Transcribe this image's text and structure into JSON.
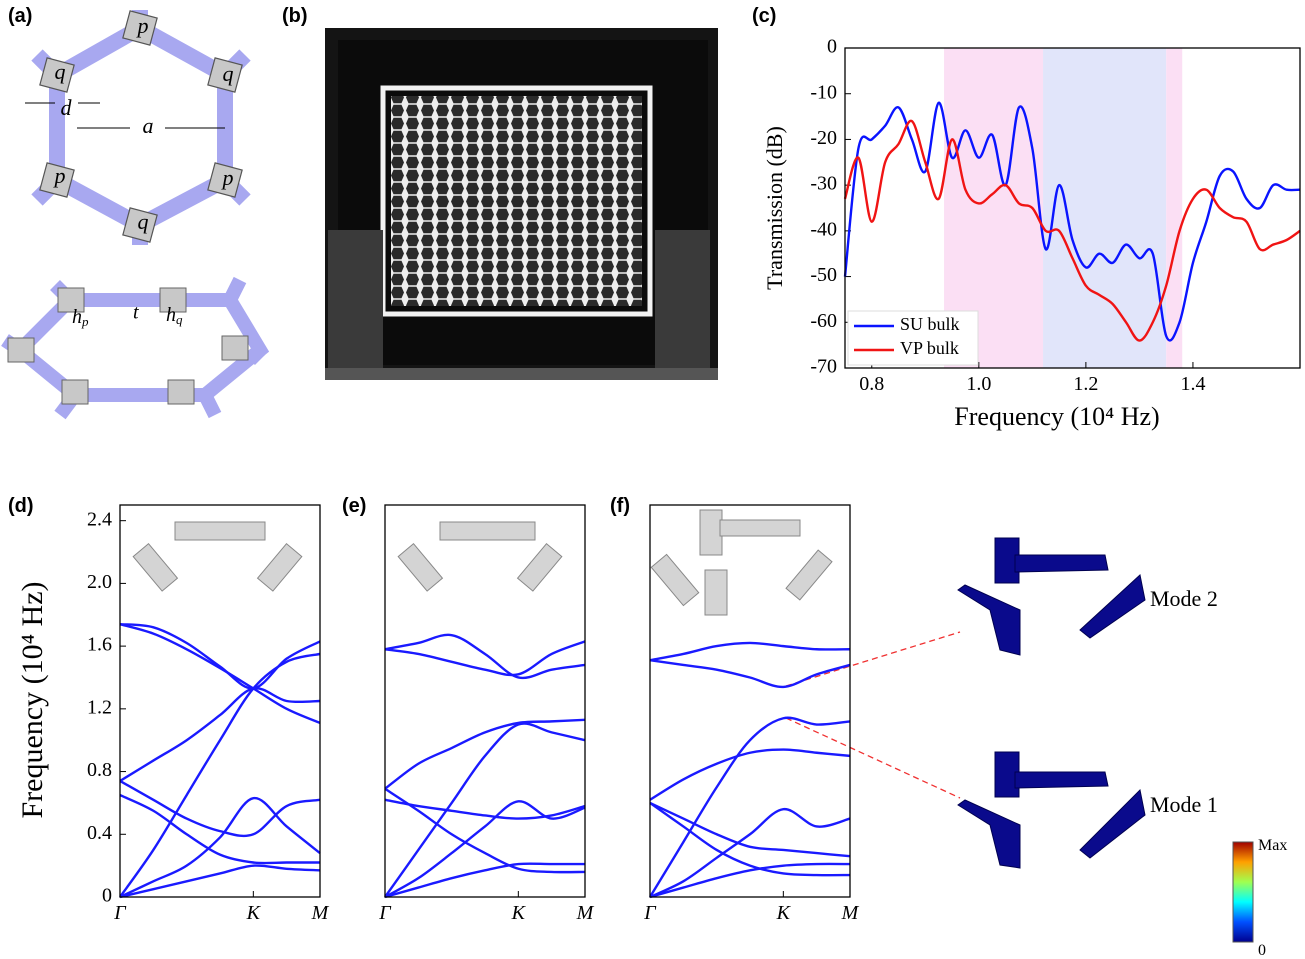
{
  "figure": {
    "panel_labels": [
      "(a)",
      "(b)",
      "(c)",
      "(d)",
      "(e)",
      "(f)"
    ],
    "schematic_labels": {
      "p": "p",
      "q": "q",
      "d": "d",
      "a": "a",
      "hp": [
        "h",
        "p"
      ],
      "t": "t",
      "hq": [
        "h",
        "q"
      ]
    },
    "modes": [
      "Mode 2",
      "Mode 1"
    ],
    "colorbar": {
      "max": "Max",
      "min": "0"
    }
  },
  "chart_data": [
    {
      "type": "line",
      "x_label": "Frequency (10⁴ Hz)",
      "y_label": "Transmission (dB)",
      "x": [
        0.75,
        0.775,
        0.8,
        0.825,
        0.85,
        0.875,
        0.9,
        0.925,
        0.95,
        0.975,
        1.0,
        1.025,
        1.05,
        1.075,
        1.1,
        1.125,
        1.15,
        1.175,
        1.2,
        1.225,
        1.25,
        1.275,
        1.3,
        1.325,
        1.35,
        1.375,
        1.4,
        1.425,
        1.45,
        1.475,
        1.5,
        1.525,
        1.55,
        1.575,
        1.6
      ],
      "series": [
        {
          "name": "SU bulk",
          "color": "#0a14ff",
          "values": [
            -50,
            -22,
            -20,
            -17,
            -13,
            -20,
            -27,
            -12,
            -24,
            -18,
            -24,
            -19,
            -30,
            -13,
            -22,
            -44,
            -30,
            -42,
            -48,
            -45,
            -47,
            -43,
            -46,
            -45,
            -63,
            -60,
            -47,
            -38,
            -28,
            -27,
            -33,
            -35,
            -30,
            -31,
            -31
          ]
        },
        {
          "name": "VP bulk",
          "color": "#f01414",
          "values": [
            -33,
            -24,
            -38,
            -25,
            -21,
            -16,
            -25,
            -33,
            -20,
            -31,
            -34,
            -32,
            -30,
            -34,
            -35,
            -40,
            -40,
            -46,
            -52,
            -54,
            -56,
            -60,
            -64,
            -60,
            -52,
            -40,
            -33,
            -31,
            -35,
            -37,
            -38,
            -44,
            -43,
            -42,
            -40
          ]
        }
      ],
      "shaded": [
        {
          "from": 0.935,
          "to": 1.12,
          "color": "#fbdff4"
        },
        {
          "from": 1.12,
          "to": 1.35,
          "color": "#e1e5fa"
        },
        {
          "from": 1.35,
          "to": 1.38,
          "color": "#fbdff4"
        }
      ],
      "xlim": [
        0.75,
        1.6
      ],
      "ylim": [
        -70,
        0
      ],
      "xticks": [
        0.8,
        {
          "value": 1,
          "label": "1.0"
        },
        1.2,
        1.4
      ],
      "yticks": [
        0,
        -10,
        -20,
        -30,
        -40,
        -50,
        -60,
        -70
      ],
      "legend": "lower left"
    },
    {
      "type": "line",
      "y_label": "Frequency (10⁴ Hz)",
      "x": [
        0,
        0.25,
        0.5,
        0.75,
        1,
        1.25,
        1.5
      ],
      "series": [
        {
          "color": "#1a1aff",
          "values": [
            0,
            0.05,
            0.1,
            0.15,
            0.2,
            0.18,
            0.17
          ]
        },
        {
          "color": "#1a1aff",
          "values": [
            0,
            0.1,
            0.2,
            0.38,
            0.63,
            0.45,
            0.28
          ]
        },
        {
          "color": "#1a1aff",
          "values": [
            0.65,
            0.55,
            0.4,
            0.27,
            0.22,
            0.22,
            0.22
          ]
        },
        {
          "color": "#1a1aff",
          "values": [
            0.74,
            0.62,
            0.5,
            0.42,
            0.4,
            0.58,
            0.62
          ]
        },
        {
          "color": "#1a1aff",
          "values": [
            0,
            0.3,
            0.65,
            1.0,
            1.33,
            1.5,
            1.55
          ]
        },
        {
          "color": "#1a1aff",
          "values": [
            0.74,
            0.87,
            1.0,
            1.16,
            1.33,
            1.25,
            1.25
          ]
        },
        {
          "color": "#1a1aff",
          "values": [
            1.74,
            1.68,
            1.58,
            1.46,
            1.33,
            1.2,
            1.11
          ]
        },
        {
          "color": "#1a1aff",
          "values": [
            1.74,
            1.72,
            1.62,
            1.47,
            1.33,
            1.52,
            1.63
          ]
        }
      ],
      "xlim": [
        0,
        1.5
      ],
      "ylim": [
        0,
        2.5
      ],
      "xticks": [
        {
          "value": 0,
          "label": "Γ"
        },
        {
          "value": 1,
          "label": "K"
        },
        {
          "value": 1.5,
          "label": "M"
        }
      ],
      "yticks": [
        0,
        0.4,
        0.8,
        1.2,
        1.6,
        {
          "value": 2,
          "label": "2.0"
        },
        2.4
      ]
    },
    {
      "type": "line",
      "x": [
        0,
        0.25,
        0.5,
        0.75,
        1,
        1.25,
        1.5
      ],
      "series": [
        {
          "color": "#1a1aff",
          "values": [
            0,
            0.06,
            0.12,
            0.17,
            0.21,
            0.21,
            0.21
          ]
        },
        {
          "color": "#1a1aff",
          "values": [
            0,
            0.12,
            0.28,
            0.45,
            0.61,
            0.5,
            0.57
          ]
        },
        {
          "color": "#1a1aff",
          "values": [
            0.62,
            0.58,
            0.55,
            0.52,
            0.5,
            0.52,
            0.58
          ]
        },
        {
          "color": "#1a1aff",
          "values": [
            0.69,
            0.55,
            0.4,
            0.28,
            0.18,
            0.16,
            0.16
          ]
        },
        {
          "color": "#1a1aff",
          "values": [
            0.69,
            0.85,
            0.95,
            1.05,
            1.11,
            1.12,
            1.13
          ]
        },
        {
          "color": "#1a1aff",
          "values": [
            0,
            0.3,
            0.6,
            0.9,
            1.1,
            1.05,
            1.0
          ]
        },
        {
          "color": "#1a1aff",
          "values": [
            1.58,
            1.62,
            1.67,
            1.55,
            1.4,
            1.45,
            1.48
          ]
        },
        {
          "color": "#1a1aff",
          "values": [
            1.58,
            1.55,
            1.5,
            1.45,
            1.42,
            1.55,
            1.63
          ]
        }
      ],
      "xlim": [
        0,
        1.5
      ],
      "ylim": [
        0,
        2.5
      ],
      "xticks": [
        {
          "value": 0,
          "label": "Γ"
        },
        {
          "value": 1,
          "label": "K"
        },
        {
          "value": 1.5,
          "label": "M"
        }
      ]
    },
    {
      "type": "line",
      "x": [
        0,
        0.25,
        0.5,
        0.75,
        1,
        1.25,
        1.5
      ],
      "series": [
        {
          "color": "#1a1aff",
          "values": [
            0,
            0.06,
            0.12,
            0.17,
            0.2,
            0.21,
            0.21
          ]
        },
        {
          "color": "#1a1aff",
          "values": [
            0,
            0.1,
            0.25,
            0.4,
            0.56,
            0.45,
            0.5
          ]
        },
        {
          "color": "#1a1aff",
          "values": [
            0.6,
            0.5,
            0.4,
            0.32,
            0.3,
            0.28,
            0.26
          ]
        },
        {
          "color": "#1a1aff",
          "values": [
            0.6,
            0.45,
            0.3,
            0.2,
            0.15,
            0.14,
            0.14
          ]
        },
        {
          "color": "#1a1aff",
          "values": [
            0.62,
            0.75,
            0.85,
            0.92,
            0.94,
            0.92,
            0.9
          ]
        },
        {
          "color": "#1a1aff",
          "values": [
            0,
            0.35,
            0.7,
            1.0,
            1.14,
            1.1,
            1.12
          ]
        },
        {
          "color": "#1a1aff",
          "values": [
            1.51,
            1.48,
            1.45,
            1.4,
            1.34,
            1.42,
            1.48
          ]
        },
        {
          "color": "#1a1aff",
          "values": [
            1.51,
            1.55,
            1.6,
            1.62,
            1.6,
            1.58,
            1.58
          ]
        }
      ],
      "xlim": [
        0,
        1.5
      ],
      "ylim": [
        0,
        2.5
      ],
      "xticks": [
        {
          "value": 0,
          "label": "Γ"
        },
        {
          "value": 1,
          "label": "K"
        },
        {
          "value": 1.5,
          "label": "M"
        }
      ]
    }
  ]
}
